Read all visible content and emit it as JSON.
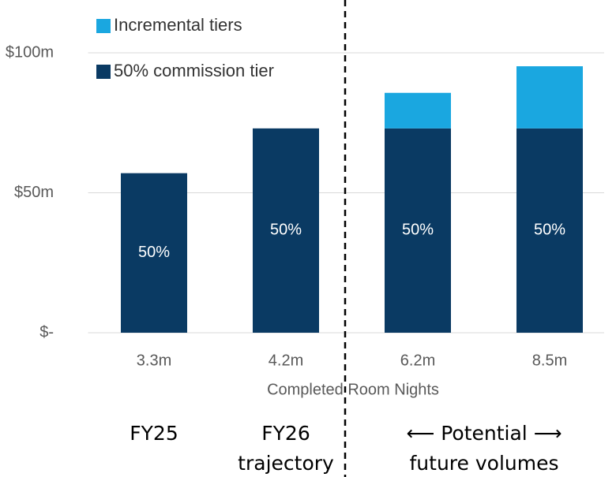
{
  "chart_data": {
    "type": "stacked_bar",
    "categories": [
      "3.3m",
      "4.2m",
      "6.2m",
      "8.5m"
    ],
    "series": [
      {
        "name": "50% commission tier",
        "color": "#0a3a63",
        "values": [
          57,
          73,
          73,
          73
        ],
        "segment_labels": [
          "50%",
          "50%",
          "50%",
          "50%"
        ]
      },
      {
        "name": "Incremental tiers",
        "color": "#1aa7e0",
        "values": [
          0,
          0,
          12.7,
          22.2
        ]
      }
    ],
    "x_label": "Completed Room Nights",
    "ylim": [
      0,
      100
    ],
    "yticks": [
      {
        "value": 0,
        "label": "$-"
      },
      {
        "value": 50,
        "label": "$50m"
      },
      {
        "value": 100,
        "label": "$100m"
      }
    ],
    "grid": true,
    "legend": "top-left",
    "groups": [
      [
        "FY25"
      ],
      [
        "FY26",
        "trajectory"
      ],
      [
        "⟵ Potential ⟶",
        "future volumes"
      ]
    ]
  }
}
